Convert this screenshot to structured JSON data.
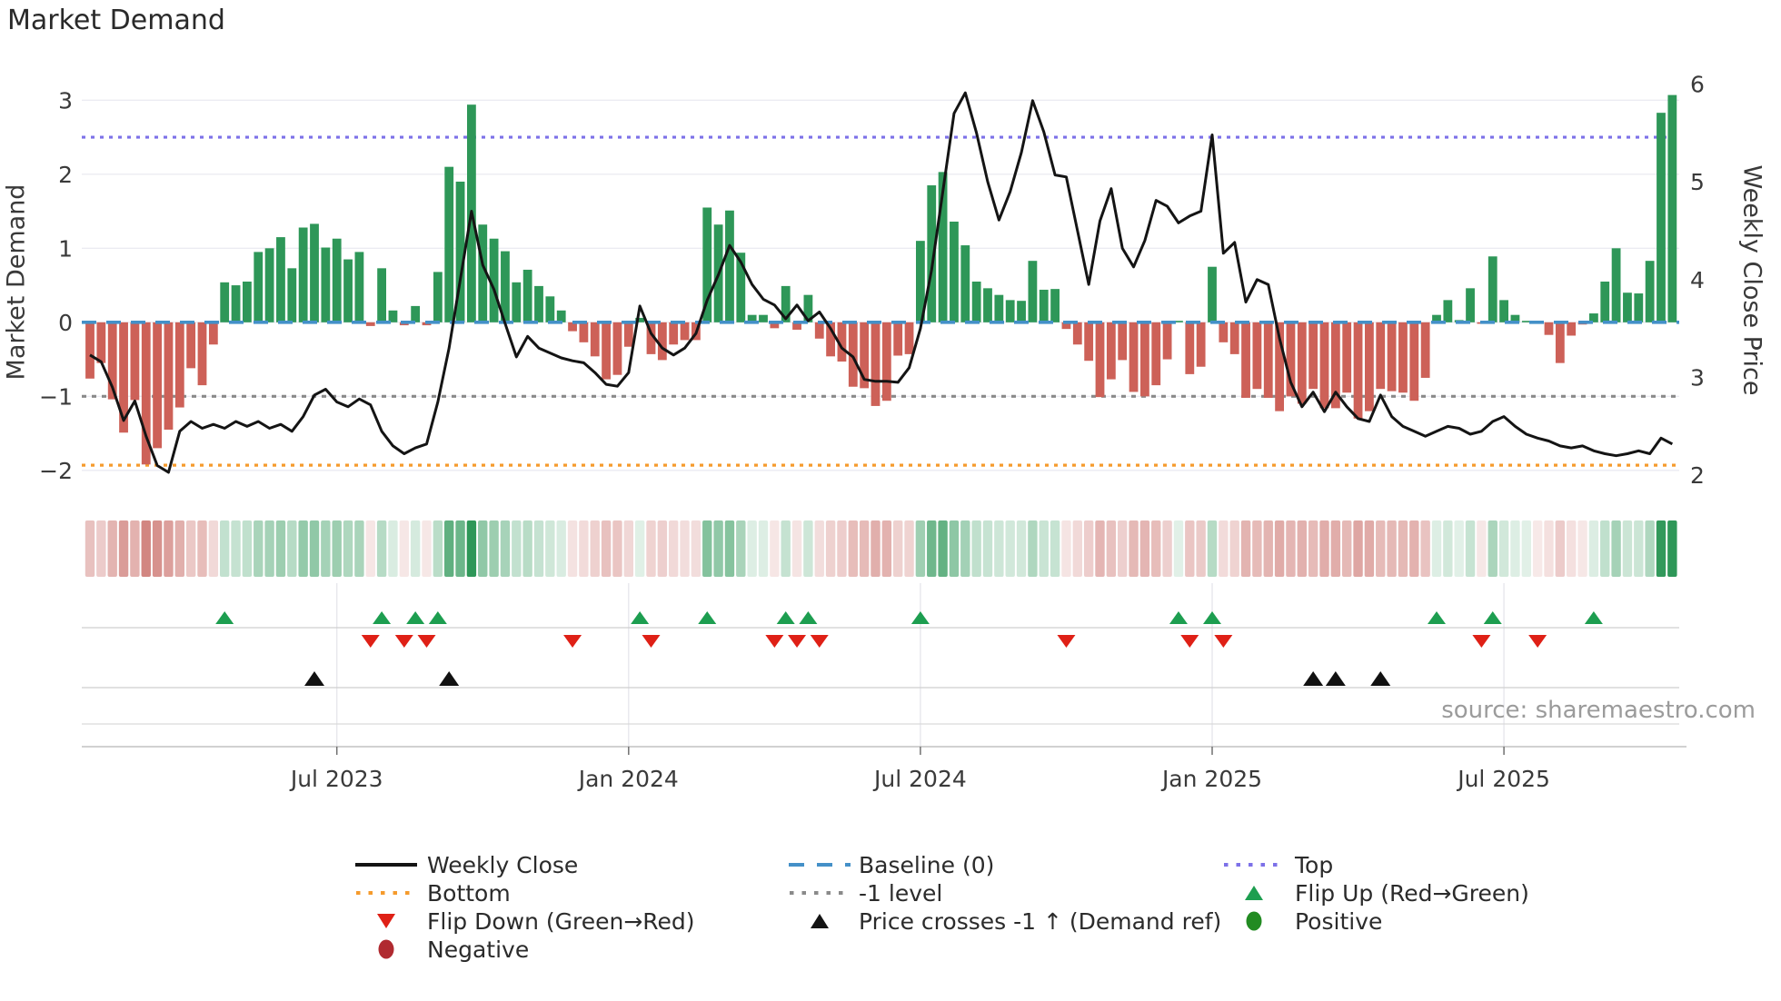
{
  "title": "Market Demand",
  "source": "source: sharemaestro.com",
  "left_axis": {
    "label": "Market Demand",
    "ticks": [
      3,
      2,
      1,
      0,
      -1,
      -2
    ]
  },
  "right_axis": {
    "label": "Weekly Close Price",
    "ticks": [
      6,
      5,
      4,
      3,
      2
    ]
  },
  "x_axis": {
    "tick_labels": [
      "Jul 2023",
      "Jan 2024",
      "Jul 2024",
      "Jan 2025",
      "Jul 2025"
    ],
    "tick_weeks": [
      22,
      48,
      74,
      100,
      126
    ]
  },
  "colors": {
    "bar_positive": "#2e9758",
    "bar_negative": "#cd6158",
    "heat_positive": "#2e9758",
    "heat_negative": "#c0544e",
    "price_line": "#141414",
    "baseline": "#4490c8",
    "top_line": "#7d71e8",
    "bottom_line": "#f59b2d",
    "minus1_line": "#8a8a8a",
    "flip_up": "#1d9e50",
    "flip_down": "#df2016",
    "positive_dot": "#228b22",
    "negative_dot": "#b02a30",
    "grid": "#ebebf2",
    "row_line": "#cfcfcf",
    "axis_line": "#c2c2c2",
    "tick_text": "#3a3a3a"
  },
  "legend": {
    "columns": [
      [
        {
          "glyph": "line",
          "color": "#141414",
          "label": "Weekly Close"
        },
        {
          "glyph": "dotted",
          "color": "#f59b2d",
          "label": "Bottom"
        },
        {
          "glyph": "tri-down",
          "color": "#df2016",
          "label": "Flip Down (Green→Red)"
        },
        {
          "glyph": "circle",
          "color": "#b02a30",
          "label": "Negative"
        }
      ],
      [
        {
          "glyph": "dashed",
          "color": "#4490c8",
          "label": "Baseline (0)"
        },
        {
          "glyph": "dotted",
          "color": "#8a8a8a",
          "label": "-1 level"
        },
        {
          "glyph": "tri-up",
          "color": "#141414",
          "label": "Price crosses -1 ↑ (Demand ref)"
        }
      ],
      [
        {
          "glyph": "dotted",
          "color": "#7d71e8",
          "label": "Top"
        },
        {
          "glyph": "tri-up",
          "color": "#1d9e50",
          "label": "Flip Up (Red→Green)"
        },
        {
          "glyph": "circle",
          "color": "#228b22",
          "label": "Positive"
        }
      ]
    ]
  },
  "chart_data": {
    "type": "bar+line",
    "x_unit": "week",
    "n_weeks": 142,
    "left_ylim": [
      -2.37,
      3.47
    ],
    "right_ylim": [
      1.77,
      6.19
    ],
    "grid": "horizontal",
    "reference_lines": {
      "baseline": 0,
      "top": 2.5,
      "bottom": -1.93,
      "minus1": -1
    },
    "series": [
      {
        "name": "Market Demand",
        "type": "bar",
        "axis": "left",
        "values": [
          -0.76,
          -0.55,
          -1.04,
          -1.49,
          -1.05,
          -1.92,
          -1.7,
          -1.45,
          -1.15,
          -0.62,
          -0.85,
          -0.3,
          0.54,
          0.5,
          0.55,
          0.95,
          1.0,
          1.15,
          0.73,
          1.28,
          1.33,
          1.01,
          1.13,
          0.85,
          0.95,
          -0.05,
          0.73,
          0.16,
          -0.04,
          0.22,
          -0.04,
          0.68,
          2.1,
          1.9,
          2.94,
          1.32,
          1.13,
          0.96,
          0.54,
          0.71,
          0.49,
          0.35,
          0.16,
          -0.12,
          -0.27,
          -0.46,
          -0.77,
          -0.71,
          -0.33,
          0.06,
          -0.43,
          -0.51,
          -0.3,
          -0.24,
          -0.24,
          1.55,
          1.32,
          1.51,
          0.94,
          0.1,
          0.1,
          -0.08,
          0.49,
          -0.1,
          0.37,
          -0.22,
          -0.46,
          -0.53,
          -0.87,
          -0.89,
          -1.13,
          -1.06,
          -0.45,
          -0.43,
          1.1,
          1.85,
          2.03,
          1.36,
          1.04,
          0.55,
          0.46,
          0.37,
          0.3,
          0.29,
          0.83,
          0.44,
          0.45,
          -0.09,
          -0.3,
          -0.52,
          -1.01,
          -0.77,
          -0.51,
          -0.94,
          -1.0,
          -0.85,
          -0.5,
          0.02,
          -0.7,
          -0.6,
          0.75,
          -0.27,
          -0.43,
          -1.02,
          -0.9,
          -1.02,
          -1.2,
          -1.0,
          -1.1,
          -0.9,
          -1.16,
          -1.16,
          -0.95,
          -1.3,
          -1.2,
          -0.9,
          -0.93,
          -0.95,
          -1.06,
          -0.75,
          0.1,
          0.3,
          0.03,
          0.46,
          -0.02,
          0.89,
          0.3,
          0.1,
          0.02,
          -0.01,
          -0.17,
          -0.55,
          -0.18,
          -0.03,
          0.12,
          0.55,
          1.0,
          0.4,
          0.39,
          0.83,
          2.83,
          3.07
        ]
      },
      {
        "name": "Weekly Close",
        "type": "line",
        "axis": "right",
        "values": [
          3.23,
          3.16,
          2.9,
          2.56,
          2.76,
          2.4,
          2.1,
          2.03,
          2.45,
          2.55,
          2.48,
          2.52,
          2.48,
          2.55,
          2.5,
          2.55,
          2.48,
          2.52,
          2.45,
          2.6,
          2.82,
          2.88,
          2.75,
          2.7,
          2.78,
          2.72,
          2.45,
          2.3,
          2.22,
          2.28,
          2.32,
          2.75,
          3.3,
          4.0,
          4.7,
          4.15,
          3.9,
          3.55,
          3.21,
          3.42,
          3.3,
          3.25,
          3.2,
          3.17,
          3.15,
          3.05,
          2.93,
          2.91,
          3.05,
          3.73,
          3.45,
          3.3,
          3.23,
          3.3,
          3.45,
          3.79,
          4.05,
          4.35,
          4.18,
          3.95,
          3.8,
          3.74,
          3.6,
          3.74,
          3.58,
          3.67,
          3.5,
          3.3,
          3.21,
          2.98,
          2.96,
          2.96,
          2.95,
          3.1,
          3.5,
          4.1,
          4.9,
          5.7,
          5.91,
          5.5,
          5.0,
          4.61,
          4.9,
          5.3,
          5.83,
          5.51,
          5.07,
          5.05,
          4.5,
          3.95,
          4.6,
          4.93,
          4.32,
          4.13,
          4.4,
          4.81,
          4.75,
          4.58,
          4.65,
          4.7,
          5.48,
          4.27,
          4.38,
          3.77,
          4.0,
          3.95,
          3.4,
          2.95,
          2.7,
          2.85,
          2.65,
          2.85,
          2.7,
          2.58,
          2.55,
          2.82,
          2.6,
          2.5,
          2.45,
          2.4,
          2.45,
          2.5,
          2.48,
          2.42,
          2.45,
          2.55,
          2.6,
          2.5,
          2.42,
          2.38,
          2.35,
          2.3,
          2.28,
          2.3,
          2.25,
          2.22,
          2.2,
          2.22,
          2.25,
          2.22,
          2.38,
          2.32
        ]
      }
    ],
    "heatmap": {
      "note": "weekly strip, green=positive demand, red=negative, intensity ~ |demand|"
    },
    "markers": {
      "flip_up_weeks": [
        12,
        26,
        29,
        31,
        49,
        55,
        62,
        64,
        74,
        97,
        100,
        120,
        125,
        134
      ],
      "flip_down_weeks": [
        25,
        28,
        30,
        43,
        50,
        61,
        63,
        65,
        87,
        98,
        101,
        124,
        129
      ],
      "price_cross_up_weeks": [
        20,
        32,
        109,
        111,
        115
      ]
    }
  }
}
